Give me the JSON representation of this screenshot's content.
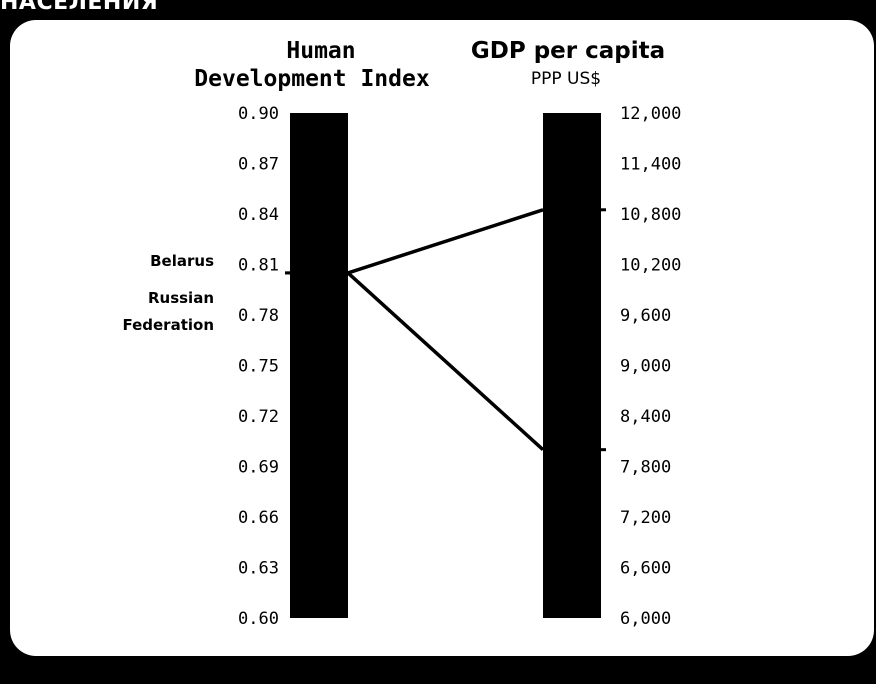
{
  "page": {
    "top_caption": "НАСЕЛЕНИЯ"
  },
  "colors": {
    "background": "#000000",
    "panel": "#ffffff",
    "bars": "#000000",
    "lines": "#000000",
    "text": "#000000"
  },
  "chart_data": {
    "type": "line",
    "axes": [
      {
        "id": "hdi",
        "title_lines": [
          "Human",
          "Development Index"
        ],
        "subtitle": "",
        "range": [
          0.6,
          0.9
        ],
        "ticks": [
          {
            "value": 0.9,
            "label": "0.90"
          },
          {
            "value": 0.87,
            "label": "0.87"
          },
          {
            "value": 0.84,
            "label": "0.84"
          },
          {
            "value": 0.81,
            "label": "0.81"
          },
          {
            "value": 0.78,
            "label": "0.78"
          },
          {
            "value": 0.75,
            "label": "0.75"
          },
          {
            "value": 0.72,
            "label": "0.72"
          },
          {
            "value": 0.69,
            "label": "0.69"
          },
          {
            "value": 0.66,
            "label": "0.66"
          },
          {
            "value": 0.63,
            "label": "0.63"
          },
          {
            "value": 0.6,
            "label": "0.60"
          }
        ]
      },
      {
        "id": "gdp",
        "title_lines": [
          "GDP per capita"
        ],
        "subtitle": "PPP US$",
        "range": [
          6000,
          12000
        ],
        "ticks": [
          {
            "value": 12000,
            "label": "12,000"
          },
          {
            "value": 11400,
            "label": "11,400"
          },
          {
            "value": 10800,
            "label": "10,800"
          },
          {
            "value": 10200,
            "label": "10,200"
          },
          {
            "value": 9600,
            "label": "9,600"
          },
          {
            "value": 9000,
            "label": "9,000"
          },
          {
            "value": 8400,
            "label": "8,400"
          },
          {
            "value": 7800,
            "label": "7,800"
          },
          {
            "value": 7200,
            "label": "7,200"
          },
          {
            "value": 6600,
            "label": "6,600"
          },
          {
            "value": 6000,
            "label": "6,000"
          }
        ]
      }
    ],
    "series": [
      {
        "name": "Belarus",
        "label_lines": [
          "Belarus"
        ],
        "hdi": 0.805,
        "gdp": 8000
      },
      {
        "name": "Russian Federation",
        "label_lines": [
          "Russian",
          "Federation"
        ],
        "hdi": 0.805,
        "gdp": 10850
      }
    ]
  }
}
